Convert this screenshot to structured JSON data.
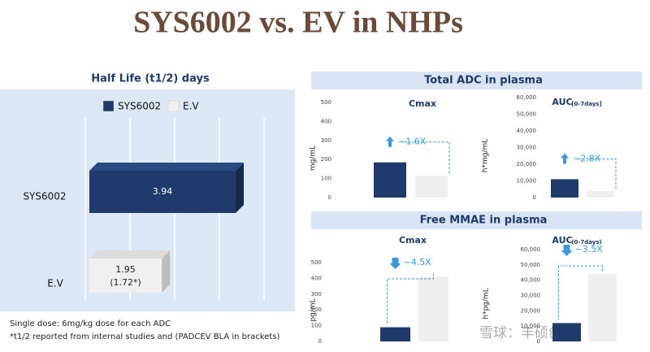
{
  "title": "SYS6002 vs. EV in NHPs",
  "sections": [
    {
      "title": "Total ADC in plasma"
    },
    {
      "title": "Free MMAE in plasma"
    }
  ],
  "notes": [
    "Single dose: 6mg/kg dose for each ADC",
    "*t1/2 reported from internal studies and (PADCEV BLA in brackets)"
  ],
  "watermark": "雪球：丰硕创投",
  "chart_data": [
    {
      "type": "hbar3d",
      "title": "Half Life (t1/2) days",
      "categories": [
        "SYS6002",
        "E.V"
      ],
      "values": [
        3.94,
        1.95
      ],
      "extra_labels": [
        null,
        "(1.72*)"
      ],
      "colors": [
        "#1f3a6b",
        "#f0f0f0"
      ],
      "legend": [
        "SYS6002",
        "E.V"
      ]
    },
    {
      "type": "bar",
      "title": "Cmax",
      "ylabel": "mg/mL",
      "categories": [
        null,
        null
      ],
      "values": [
        185,
        115
      ],
      "colors": [
        "#1f3a6b",
        "#efefef"
      ],
      "ylim": [
        0,
        500
      ],
      "yticks": [
        0,
        100,
        200,
        300,
        400,
        500
      ],
      "fold_label": "~1.6X",
      "fold_direction": "up"
    },
    {
      "type": "bar",
      "title": "AUC",
      "title_sub": "[0-7days]",
      "ylabel": "h*mg/mL",
      "categories": [
        null,
        null
      ],
      "values": [
        11000,
        3900
      ],
      "colors": [
        "#1f3a6b",
        "#efefef"
      ],
      "ylim": [
        0,
        60000
      ],
      "yticks": [
        0,
        {
          "value": 10000,
          "label": "10,000"
        },
        {
          "value": 20000,
          "label": "20,000"
        },
        {
          "value": 30000,
          "label": "30,000"
        },
        {
          "value": 40000,
          "label": "40,000"
        },
        {
          "value": 50000,
          "label": "50,000"
        },
        {
          "value": 60000,
          "label": "60,000"
        }
      ],
      "fold_label": "~2.8X",
      "fold_direction": "up"
    },
    {
      "type": "bar",
      "title": "Cmax",
      "ylabel": "pg/mL",
      "categories": [
        null,
        null
      ],
      "values": [
        90,
        410
      ],
      "colors": [
        "#1f3a6b",
        "#efefef"
      ],
      "ylim": [
        0,
        500
      ],
      "yticks": [
        0,
        100,
        200,
        300,
        400,
        500
      ],
      "fold_label": "~4.5X",
      "fold_direction": "down"
    },
    {
      "type": "bar",
      "title": "AUC",
      "title_sub": "(0-7days)",
      "ylabel": "h*pg/mL",
      "categories": [
        null,
        null
      ],
      "values": [
        12000,
        44000
      ],
      "colors": [
        "#1f3a6b",
        "#efefef"
      ],
      "ylim": [
        0,
        60000
      ],
      "yticks": [
        0,
        {
          "value": 10000,
          "label": "10,000"
        },
        {
          "value": 20000,
          "label": "20,000"
        },
        {
          "value": 30000,
          "label": "30,000"
        },
        {
          "value": 40000,
          "label": "40,000"
        },
        {
          "value": 50000,
          "label": "50,000"
        },
        {
          "value": 60000,
          "label": "60,000"
        }
      ],
      "fold_label": "~3.5X",
      "fold_direction": "down"
    }
  ]
}
